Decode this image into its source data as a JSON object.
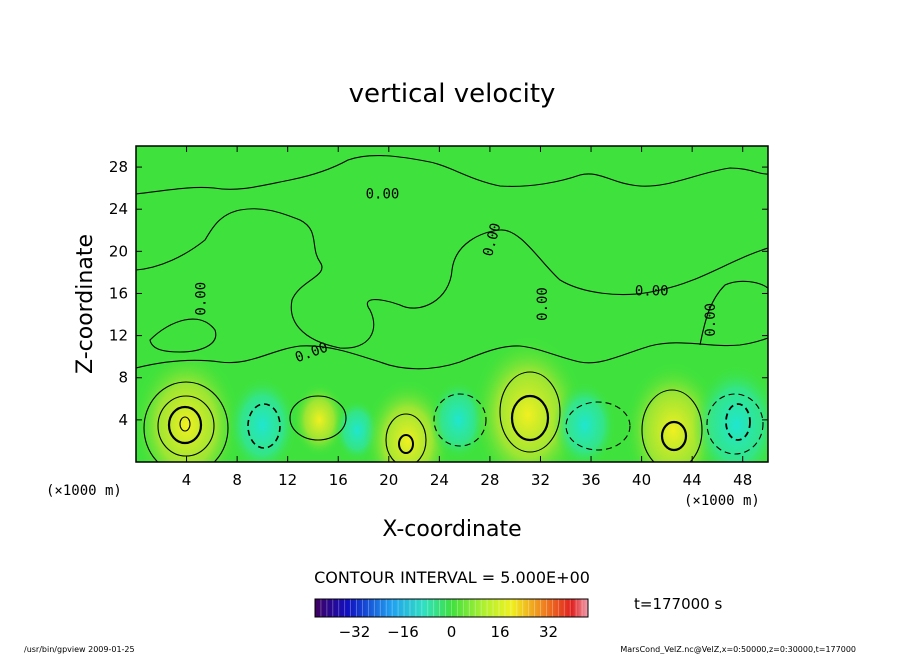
{
  "chart_data": {
    "type": "heatmap",
    "title": "vertical velocity",
    "xlabel": "X-coordinate",
    "ylabel": "Z-coordinate",
    "x_unit_left": "(×1000 m)",
    "x_unit_right": "(×1000 m)",
    "xlim": [
      0,
      50
    ],
    "ylim": [
      0,
      30
    ],
    "x_ticks": [
      4,
      8,
      12,
      16,
      20,
      24,
      28,
      32,
      36,
      40,
      44,
      48
    ],
    "y_ticks": [
      4,
      8,
      12,
      16,
      20,
      24,
      28
    ],
    "contour_labels": [
      {
        "text": "0.00",
        "x": 19.5,
        "y": 25.0,
        "angle": 0
      },
      {
        "text": "0.00",
        "x": 5.5,
        "y": 15.5,
        "angle": -90
      },
      {
        "text": "0.00",
        "x": 14.0,
        "y": 10.0,
        "angle": -20
      },
      {
        "text": "0.00",
        "x": 28.5,
        "y": 21.0,
        "angle": -75
      },
      {
        "text": "0.00",
        "x": 32.5,
        "y": 15.0,
        "angle": -90
      },
      {
        "text": "0.00",
        "x": 40.8,
        "y": 15.8,
        "angle": 0
      },
      {
        "text": "0.00",
        "x": 45.8,
        "y": 13.5,
        "angle": -90
      }
    ],
    "contour_interval_text": "CONTOUR INTERVAL = 5.000E+00",
    "time_text": "t=177000  s",
    "colorbar": {
      "ticks": [
        -32,
        -16,
        0,
        16,
        32
      ],
      "range": [
        -45,
        45
      ]
    },
    "cells": [
      {
        "x": 4.0,
        "y": 3.5,
        "value": 30
      },
      {
        "x": 10.0,
        "y": 3.5,
        "value": -15
      },
      {
        "x": 14.5,
        "y": 4.0,
        "value": 8
      },
      {
        "x": 17.5,
        "y": 3.0,
        "value": -5
      },
      {
        "x": 21.5,
        "y": 2.0,
        "value": 22
      },
      {
        "x": 25.5,
        "y": 4.0,
        "value": -10
      },
      {
        "x": 31.0,
        "y": 4.5,
        "value": 32
      },
      {
        "x": 35.5,
        "y": 3.5,
        "value": -12
      },
      {
        "x": 42.5,
        "y": 3.0,
        "value": 26
      },
      {
        "x": 47.5,
        "y": 3.5,
        "value": -22
      }
    ],
    "colors": {
      "background_field": "#3fe23c",
      "frame": "#000000"
    }
  },
  "footer": {
    "left": "/usr/bin/gpview   2009-01-25",
    "right": "MarsCond_VelZ.nc@VelZ,x=0:50000,z=0:30000,t=177000"
  }
}
